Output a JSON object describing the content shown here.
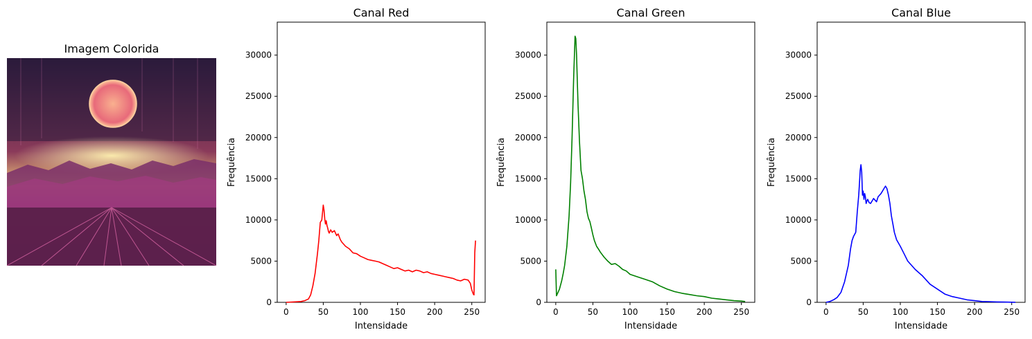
{
  "image_panel": {
    "title": "Imagem Colorida"
  },
  "chart_data": [
    {
      "type": "line",
      "title": "Canal Red",
      "xlabel": "Intensidade",
      "ylabel": "Frequência",
      "xlim": [
        -12,
        268
      ],
      "ylim": [
        0,
        34000
      ],
      "xticks": [
        0,
        50,
        100,
        150,
        200,
        250
      ],
      "yticks": [
        0,
        5000,
        10000,
        15000,
        20000,
        25000,
        30000
      ],
      "grid": false,
      "color": "#ff0000",
      "series": [
        {
          "x": [
            0,
            10,
            20,
            25,
            30,
            33,
            36,
            39,
            42,
            44,
            46,
            48,
            50,
            51,
            52,
            53,
            54,
            55,
            56,
            57,
            58,
            60,
            62,
            65,
            68,
            70,
            73,
            75,
            80,
            85,
            90,
            95,
            100,
            105,
            110,
            115,
            120,
            125,
            130,
            135,
            140,
            145,
            150,
            155,
            160,
            165,
            170,
            175,
            180,
            185,
            190,
            195,
            200,
            205,
            210,
            215,
            220,
            225,
            230,
            235,
            240,
            245,
            248,
            250,
            252,
            253,
            254,
            255
          ],
          "y": [
            0,
            50,
            100,
            200,
            400,
            900,
            2000,
            3500,
            5800,
            7500,
            9700,
            10000,
            11800,
            11200,
            10100,
            9500,
            9900,
            9300,
            9000,
            8600,
            8400,
            8800,
            8500,
            8700,
            8100,
            8300,
            7600,
            7300,
            6800,
            6500,
            6000,
            5900,
            5600,
            5400,
            5200,
            5100,
            5000,
            4900,
            4700,
            4500,
            4300,
            4100,
            4200,
            4000,
            3800,
            3900,
            3700,
            3900,
            3800,
            3600,
            3700,
            3500,
            3400,
            3300,
            3200,
            3100,
            3000,
            2900,
            2700,
            2600,
            2800,
            2700,
            2300,
            1500,
            1000,
            900,
            6000,
            7500
          ]
        }
      ]
    },
    {
      "type": "line",
      "title": "Canal Green",
      "xlabel": "Intensidade",
      "ylabel": "Frequência",
      "xlim": [
        -12,
        268
      ],
      "ylim": [
        0,
        34000
      ],
      "xticks": [
        0,
        50,
        100,
        150,
        200,
        250
      ],
      "yticks": [
        0,
        5000,
        10000,
        15000,
        20000,
        25000,
        30000
      ],
      "grid": false,
      "color": "#008000",
      "series": [
        {
          "x": [
            0,
            1,
            3,
            5,
            8,
            10,
            12,
            15,
            18,
            20,
            22,
            24,
            26,
            27,
            28,
            29,
            30,
            32,
            34,
            36,
            38,
            40,
            42,
            44,
            46,
            48,
            50,
            52,
            55,
            58,
            60,
            65,
            70,
            75,
            80,
            85,
            90,
            95,
            100,
            110,
            120,
            130,
            140,
            150,
            160,
            170,
            180,
            190,
            200,
            210,
            220,
            230,
            240,
            250,
            255
          ],
          "y": [
            4000,
            800,
            1200,
            1600,
            2600,
            3500,
            4500,
            6800,
            10500,
            14500,
            20000,
            27000,
            32300,
            32000,
            30000,
            27000,
            24000,
            19500,
            16000,
            15000,
            13500,
            12500,
            11000,
            10200,
            9800,
            9000,
            8200,
            7500,
            6800,
            6400,
            6100,
            5500,
            5000,
            4600,
            4700,
            4400,
            4000,
            3800,
            3400,
            3100,
            2800,
            2500,
            2000,
            1600,
            1300,
            1100,
            950,
            800,
            700,
            500,
            400,
            300,
            200,
            150,
            100
          ]
        }
      ]
    },
    {
      "type": "line",
      "title": "Canal Blue",
      "xlabel": "Intensidade",
      "ylabel": "Frequência",
      "xlim": [
        -12,
        268
      ],
      "ylim": [
        0,
        34000
      ],
      "xticks": [
        0,
        50,
        100,
        150,
        200,
        250
      ],
      "yticks": [
        0,
        5000,
        10000,
        15000,
        20000,
        25000,
        30000
      ],
      "grid": false,
      "color": "#0000ff",
      "series": [
        {
          "x": [
            0,
            5,
            10,
            15,
            20,
            25,
            30,
            33,
            35,
            37,
            40,
            42,
            44,
            45,
            46,
            47,
            48,
            49,
            50,
            51,
            52,
            53,
            54,
            55,
            56,
            58,
            60,
            62,
            64,
            66,
            68,
            70,
            72,
            74,
            76,
            78,
            80,
            82,
            84,
            86,
            88,
            90,
            92,
            95,
            100,
            105,
            110,
            115,
            120,
            130,
            140,
            150,
            160,
            170,
            180,
            190,
            200,
            210,
            220,
            230,
            240,
            250,
            255
          ],
          "y": [
            0,
            100,
            300,
            600,
            1200,
            2500,
            4500,
            6500,
            7500,
            8000,
            8500,
            11000,
            13000,
            14500,
            16000,
            16700,
            15800,
            13000,
            13500,
            12500,
            13200,
            12800,
            12000,
            12300,
            12500,
            12100,
            12000,
            12300,
            12600,
            12400,
            12200,
            12800,
            13000,
            13200,
            13500,
            13800,
            14100,
            13800,
            13000,
            12000,
            10500,
            9500,
            8500,
            7600,
            6800,
            5900,
            5000,
            4500,
            4000,
            3200,
            2200,
            1600,
            1000,
            700,
            500,
            300,
            200,
            100,
            80,
            50,
            30,
            20,
            10
          ]
        }
      ]
    }
  ]
}
